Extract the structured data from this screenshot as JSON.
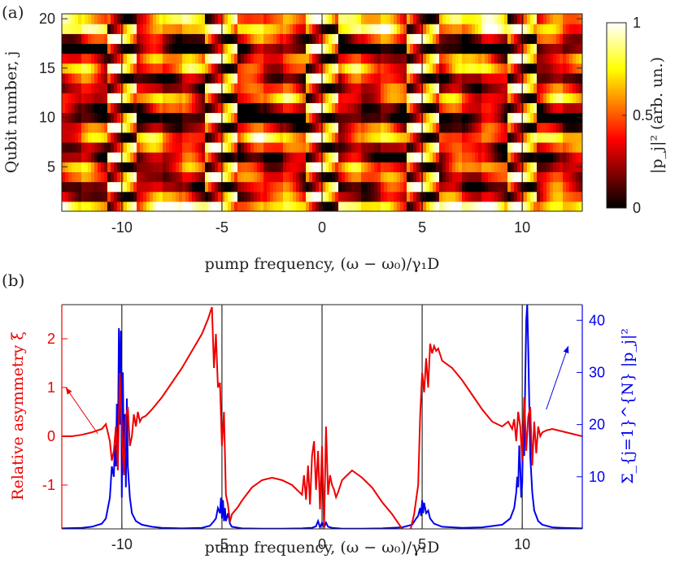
{
  "panel_a_label": "(a)",
  "panel_b_label": "(b)",
  "colors": {
    "left_axis": "#ee0000",
    "right_axis": "#0000ee",
    "marker_line": "#000000"
  },
  "chart_data": [
    {
      "type": "heatmap",
      "xlabel": "pump frequency, (ω − ω₀)/γ₁D",
      "ylabel": "Qubit number, j",
      "xlim": [
        -13,
        13
      ],
      "ylim": [
        0.5,
        20.5
      ],
      "x_ticks": [
        -10,
        -5,
        0,
        5,
        10
      ],
      "x_tick_labels": [
        "-10",
        "-5",
        "0",
        "5",
        "10"
      ],
      "y_ticks": [
        5,
        10,
        15,
        20
      ],
      "y_tick_labels": [
        "5",
        "10",
        "15",
        "20"
      ],
      "colorbar": {
        "label": "|p_j|² (arb. un.)",
        "ticks": [
          0,
          0.5,
          1
        ],
        "tick_labels": [
          "0",
          "0.5",
          "1"
        ],
        "colormap": "hot"
      },
      "resonance_lines_x": [
        -10,
        -5,
        0,
        5,
        10
      ]
    },
    {
      "type": "line",
      "xlabel": "pump frequency, (ω − ω₀)/γ₁D",
      "xlim": [
        -13,
        13
      ],
      "x_ticks": [
        -10,
        -5,
        0,
        5,
        10
      ],
      "x_tick_labels": [
        "-10",
        "-5",
        "0",
        "5",
        "10"
      ],
      "left_ylabel": "Relative asymmetry ξ",
      "left_ylim": [
        -1.9,
        2.7
      ],
      "left_ticks": [
        -1,
        0,
        1,
        2
      ],
      "left_tick_labels": [
        "-1",
        "0",
        "1",
        "2"
      ],
      "right_ylabel": "Σ_{j=1}^{N} |p_j|²",
      "right_ylim": [
        0,
        43
      ],
      "right_ticks": [
        10,
        20,
        30,
        40
      ],
      "right_tick_labels": [
        "10",
        "20",
        "30",
        "40"
      ],
      "resonance_lines_x": [
        -10,
        -5,
        0,
        5,
        10
      ],
      "series": [
        {
          "name": "Relative asymmetry ξ",
          "axis": "left",
          "color": "#ee0000",
          "x": [
            -13,
            -12.5,
            -12,
            -11.5,
            -11,
            -10.8,
            -10.7,
            -10.6,
            -10.5,
            -10.4,
            -10.3,
            -10.2,
            -10.1,
            -10,
            -9.9,
            -9.8,
            -9.7,
            -9.6,
            -9.5,
            -9.4,
            -9.3,
            -9.2,
            -9.1,
            -9.0,
            -8.8,
            -8.5,
            -8.0,
            -7.5,
            -7.0,
            -6.5,
            -6.0,
            -5.7,
            -5.5,
            -5.4,
            -5.3,
            -5.2,
            -5.1,
            -5.0,
            -4.9,
            -4.8,
            -4.7,
            -4.6,
            -4.5,
            -4.2,
            -4.0,
            -3.5,
            -3.0,
            -2.5,
            -2.0,
            -1.5,
            -1.0,
            -0.9,
            -0.8,
            -0.7,
            -0.6,
            -0.5,
            -0.4,
            -0.3,
            -0.2,
            -0.1,
            0,
            0.1,
            0.2,
            0.3,
            0.4,
            0.5,
            0.6,
            0.7,
            0.8,
            1.0,
            1.5,
            2.0,
            2.5,
            3.0,
            3.5,
            4.0,
            4.4,
            4.6,
            4.8,
            4.9,
            5.0,
            5.1,
            5.2,
            5.3,
            5.4,
            5.5,
            5.6,
            5.7,
            5.8,
            6.0,
            6.5,
            7.0,
            7.5,
            8.0,
            8.5,
            9.0,
            9.3,
            9.5,
            9.6,
            9.7,
            9.8,
            9.9,
            10.0,
            10.1,
            10.2,
            10.3,
            10.4,
            10.5,
            10.6,
            10.7,
            10.8,
            10.9,
            11.0,
            11.2,
            11.5,
            12.0,
            12.5,
            13
          ],
          "y": [
            0.0,
            0.0,
            0.03,
            0.08,
            0.15,
            0.25,
            0.08,
            -0.1,
            -0.5,
            -0.3,
            0.2,
            -0.7,
            1.3,
            0.1,
            -0.8,
            0.4,
            0.6,
            -0.2,
            0.0,
            0.45,
            0.2,
            0.5,
            0.3,
            0.38,
            0.42,
            0.55,
            0.8,
            1.1,
            1.4,
            1.75,
            2.1,
            2.4,
            2.65,
            1.4,
            2.1,
            1.0,
            1.1,
            -0.2,
            0.5,
            -1.2,
            -1.4,
            -1.75,
            -1.6,
            -1.45,
            -1.32,
            -1.05,
            -0.9,
            -0.85,
            -0.9,
            -1.0,
            -1.2,
            -0.8,
            -1.3,
            -0.6,
            -1.4,
            -0.4,
            -0.1,
            -1.1,
            -0.3,
            -1.5,
            -0.2,
            -1.9,
            0.2,
            -1.2,
            -0.8,
            -1.0,
            -1.1,
            -1.25,
            -1.15,
            -0.9,
            -0.7,
            -0.85,
            -1.05,
            -1.35,
            -1.6,
            -1.9,
            -1.95,
            -1.6,
            -1.0,
            0.4,
            1.3,
            0.9,
            1.6,
            1.0,
            1.9,
            1.7,
            1.85,
            1.75,
            1.8,
            1.55,
            1.4,
            1.15,
            0.85,
            0.55,
            0.3,
            0.2,
            0.3,
            0.15,
            0.35,
            -0.1,
            0.5,
            0.2,
            -0.5,
            0.8,
            -0.3,
            0.4,
            0.6,
            -0.6,
            0.3,
            -0.35,
            0.2,
            0.0,
            0.08,
            0.12,
            0.15,
            0.1,
            0.05,
            0.0
          ]
        },
        {
          "name": "Σ |p_j|²",
          "axis": "right",
          "color": "#0000ee",
          "x": [
            -13,
            -12,
            -11.5,
            -11,
            -10.8,
            -10.6,
            -10.5,
            -10.4,
            -10.35,
            -10.3,
            -10.25,
            -10.2,
            -10.15,
            -10.1,
            -10.05,
            -10.0,
            -9.95,
            -9.9,
            -9.85,
            -9.8,
            -9.75,
            -9.7,
            -9.6,
            -9.5,
            -9.3,
            -9.0,
            -8.5,
            -8.0,
            -7.0,
            -6.0,
            -5.6,
            -5.4,
            -5.3,
            -5.2,
            -5.1,
            -5.05,
            -5.0,
            -4.95,
            -4.9,
            -4.85,
            -4.8,
            -4.7,
            -4.6,
            -4.5,
            -4.0,
            -3.0,
            -2.0,
            -1.0,
            -0.5,
            -0.3,
            -0.2,
            -0.1,
            0,
            0.1,
            0.2,
            0.3,
            0.5,
            1.0,
            2.0,
            3.0,
            4.0,
            4.5,
            4.7,
            4.8,
            4.9,
            4.95,
            5.0,
            5.05,
            5.1,
            5.2,
            5.3,
            5.4,
            5.6,
            6.0,
            7.0,
            8.0,
            9.0,
            9.4,
            9.6,
            9.7,
            9.75,
            9.8,
            9.85,
            9.9,
            9.95,
            10.0,
            10.05,
            10.1,
            10.15,
            10.2,
            10.25,
            10.3,
            10.35,
            10.4,
            10.5,
            10.6,
            10.8,
            11.0,
            11.5,
            12.0,
            13
          ],
          "y": [
            0.1,
            0.2,
            0.4,
            1.0,
            2.0,
            6.0,
            12.0,
            10.0,
            16.0,
            12.0,
            24.0,
            14.0,
            38.5,
            20.0,
            38.0,
            6.0,
            30.0,
            12.0,
            22.0,
            8.0,
            25.0,
            12.0,
            6.0,
            3.0,
            1.5,
            0.8,
            0.4,
            0.2,
            0.1,
            0.2,
            0.6,
            1.5,
            2.0,
            4.0,
            3.0,
            6.0,
            2.0,
            5.5,
            1.5,
            4.0,
            1.5,
            3.0,
            1.0,
            0.4,
            0.1,
            0.05,
            0.05,
            0.1,
            0.2,
            0.5,
            1.5,
            0.3,
            1.2,
            0.3,
            1.2,
            0.4,
            0.2,
            0.05,
            0.05,
            0.1,
            0.3,
            0.8,
            2.0,
            2.5,
            4.0,
            2.5,
            5.5,
            3.0,
            5.0,
            3.0,
            3.5,
            2.0,
            1.0,
            0.4,
            0.2,
            0.3,
            0.8,
            2.0,
            4.0,
            7.0,
            10.0,
            8.0,
            16.0,
            12.0,
            6.0,
            9.0,
            20.0,
            14.0,
            28.0,
            40.0,
            43.0,
            35.0,
            24.0,
            14.0,
            7.0,
            3.5,
            1.5,
            0.8,
            0.3,
            0.2,
            0.1
          ]
        }
      ],
      "annotations": [
        {
          "text": "arrow-to-left-axis",
          "from_x": -11.2,
          "from_y": 0.05,
          "to_x": -12.8,
          "to_y": 1.0,
          "color": "#ee0000"
        },
        {
          "text": "arrow-to-right-axis",
          "from_x": 11.2,
          "from_y": 0.55,
          "to_x": 12.3,
          "to_y": 1.85,
          "color": "#0000ee"
        }
      ]
    }
  ]
}
